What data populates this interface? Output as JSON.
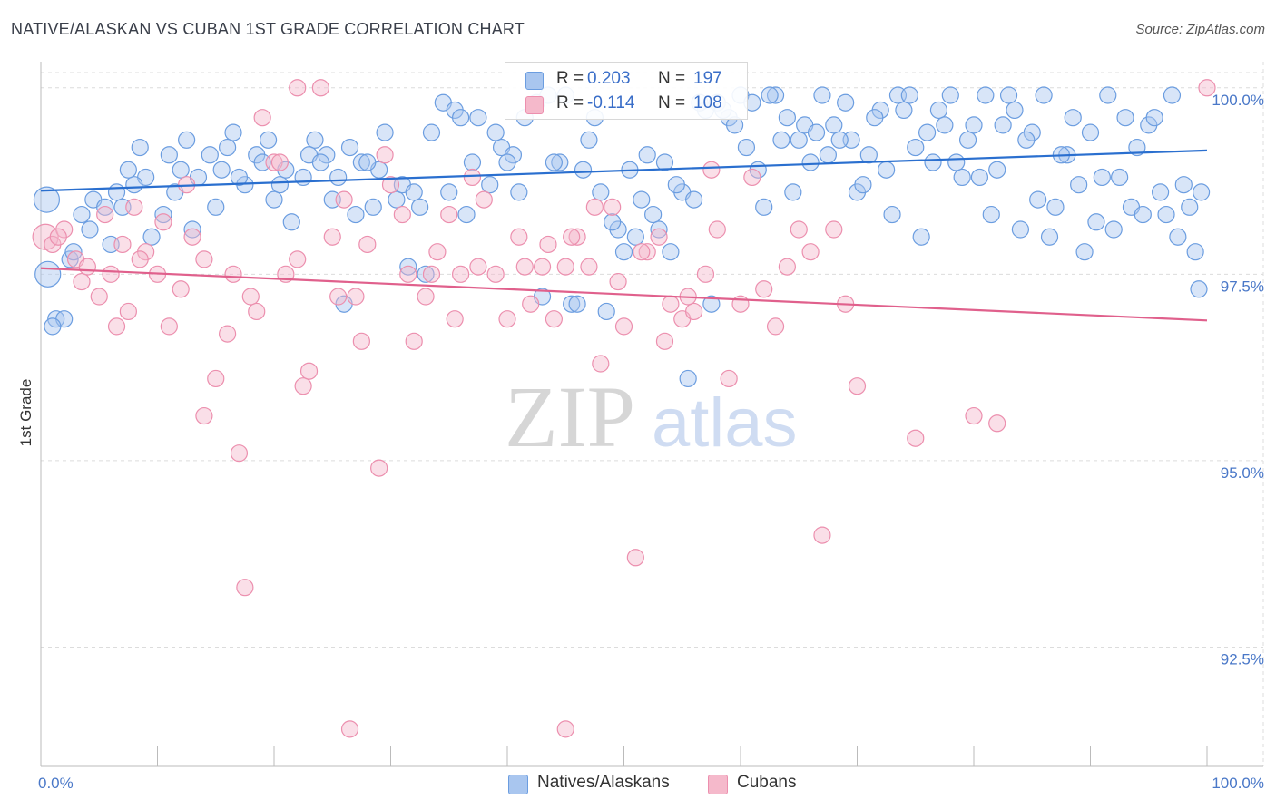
{
  "title": "NATIVE/ALASKAN VS CUBAN 1ST GRADE CORRELATION CHART",
  "source": "Source: ZipAtlas.com",
  "watermark": {
    "zip": "ZIP",
    "atlas": "atlas"
  },
  "legend_top": [
    {
      "r_label": "R =",
      "r_value": "0.203",
      "n_label": "N =",
      "n_value": "197"
    },
    {
      "r_label": "R =",
      "r_value": "-0.114",
      "n_label": "N =",
      "n_value": "108"
    }
  ],
  "legend_bottom": [
    {
      "label": "Natives/Alaskans"
    },
    {
      "label": "Cubans"
    }
  ],
  "colors": {
    "natives_fill": "#a9c6ef",
    "natives_stroke": "#6b9de0",
    "natives_line": "#2a6fcf",
    "cubans_fill": "#f5b9cb",
    "cubans_stroke": "#ec8fae",
    "cubans_line": "#e0608c",
    "tick_text": "#4a78c8",
    "grid": "#dcdcdc"
  },
  "chart_data": {
    "type": "scatter",
    "xlabel": "",
    "ylabel": "1st Grade",
    "xlim": [
      0,
      100
    ],
    "ylim": [
      90.9,
      100.35
    ],
    "x_tick_labels": [
      "0.0%",
      "100.0%"
    ],
    "y_ticks": [
      92.5,
      95.0,
      97.5,
      100.0
    ],
    "y_tick_labels": [
      "92.5%",
      "95.0%",
      "97.5%",
      "100.0%"
    ],
    "grid": true,
    "legend_position": "top-center",
    "series": [
      {
        "name": "Natives/Alaskans",
        "r": 0.203,
        "n": 197,
        "trend": [
          [
            0,
            98.62
          ],
          [
            100,
            99.16
          ]
        ],
        "points": [
          [
            0.5,
            98.5
          ],
          [
            0.6,
            97.5
          ],
          [
            1.3,
            96.9
          ],
          [
            2,
            96.9
          ],
          [
            2.5,
            97.7
          ],
          [
            3.5,
            98.3
          ],
          [
            4.5,
            98.5
          ],
          [
            5.5,
            98.4
          ],
          [
            6.5,
            98.6
          ],
          [
            7,
            98.4
          ],
          [
            8.5,
            99.2
          ],
          [
            9,
            98.8
          ],
          [
            10.5,
            98.3
          ],
          [
            11,
            99.1
          ],
          [
            12.5,
            99.3
          ],
          [
            13.5,
            98.8
          ],
          [
            14.5,
            99.1
          ],
          [
            15.5,
            98.9
          ],
          [
            16.5,
            99.4
          ],
          [
            17.5,
            98.7
          ],
          [
            18.5,
            99.1
          ],
          [
            19.5,
            99.3
          ],
          [
            20.5,
            98.7
          ],
          [
            21.5,
            98.2
          ],
          [
            22.5,
            98.8
          ],
          [
            23.5,
            99.3
          ],
          [
            24.5,
            99.1
          ],
          [
            25.5,
            98.8
          ],
          [
            26.5,
            99.2
          ],
          [
            27.5,
            99.0
          ],
          [
            28.5,
            98.4
          ],
          [
            29.5,
            99.4
          ],
          [
            30.5,
            98.5
          ],
          [
            31.5,
            97.6
          ],
          [
            32.5,
            98.4
          ],
          [
            33.5,
            99.4
          ],
          [
            34.5,
            99.8
          ],
          [
            35.5,
            99.7
          ],
          [
            36.5,
            98.3
          ],
          [
            37.5,
            99.6
          ],
          [
            38.5,
            98.7
          ],
          [
            39.5,
            99.2
          ],
          [
            40.5,
            99.1
          ],
          [
            41.5,
            99.6
          ],
          [
            42.5,
            99.8
          ],
          [
            43.5,
            99.9
          ],
          [
            44.5,
            99.0
          ],
          [
            45.5,
            97.1
          ],
          [
            46.5,
            98.9
          ],
          [
            47.5,
            99.6
          ],
          [
            48.5,
            97.0
          ],
          [
            49.5,
            98.1
          ],
          [
            50.5,
            98.9
          ],
          [
            51.5,
            98.5
          ],
          [
            52.5,
            98.3
          ],
          [
            53,
            98.1
          ],
          [
            54,
            97.8
          ],
          [
            55,
            98.6
          ],
          [
            56,
            98.5
          ],
          [
            57,
            99.7
          ],
          [
            58,
            99.8
          ],
          [
            59,
            99.6
          ],
          [
            60,
            99.9
          ],
          [
            61,
            99.8
          ],
          [
            62,
            98.4
          ],
          [
            63,
            99.9
          ],
          [
            64.5,
            98.6
          ],
          [
            65,
            99.3
          ],
          [
            66,
            99.0
          ],
          [
            67,
            99.9
          ],
          [
            68,
            99.5
          ],
          [
            69,
            99.8
          ],
          [
            70,
            98.6
          ],
          [
            71,
            99.1
          ],
          [
            72,
            99.7
          ],
          [
            73,
            98.3
          ],
          [
            74,
            99.7
          ],
          [
            75,
            99.2
          ],
          [
            76,
            99.4
          ],
          [
            77,
            99.7
          ],
          [
            78,
            99.9
          ],
          [
            79,
            98.8
          ],
          [
            80,
            99.5
          ],
          [
            81,
            99.9
          ],
          [
            82,
            98.9
          ],
          [
            83,
            99.9
          ],
          [
            84,
            98.1
          ],
          [
            85,
            99.4
          ],
          [
            86,
            99.9
          ],
          [
            87,
            98.4
          ],
          [
            88,
            99.1
          ],
          [
            89,
            98.7
          ],
          [
            90,
            99.4
          ],
          [
            91,
            98.8
          ],
          [
            92,
            98.1
          ],
          [
            93,
            99.6
          ],
          [
            94,
            99.2
          ],
          [
            95,
            99.5
          ],
          [
            96,
            98.6
          ],
          [
            97,
            99.9
          ],
          [
            98,
            98.7
          ],
          [
            99,
            97.8
          ],
          [
            99.3,
            97.3
          ],
          [
            1,
            96.8
          ],
          [
            2.8,
            97.8
          ],
          [
            4.2,
            98.1
          ],
          [
            6,
            97.9
          ],
          [
            8,
            98.7
          ],
          [
            9.5,
            98.0
          ],
          [
            11.5,
            98.6
          ],
          [
            13,
            98.1
          ],
          [
            15,
            98.4
          ],
          [
            17,
            98.8
          ],
          [
            19,
            99.0
          ],
          [
            21,
            98.9
          ],
          [
            23,
            99.1
          ],
          [
            25,
            98.5
          ],
          [
            27,
            98.3
          ],
          [
            29,
            98.9
          ],
          [
            31,
            98.7
          ],
          [
            33,
            97.5
          ],
          [
            35,
            98.6
          ],
          [
            37,
            99.0
          ],
          [
            39,
            99.4
          ],
          [
            41,
            98.6
          ],
          [
            43,
            97.2
          ],
          [
            45,
            99.9
          ],
          [
            47,
            99.3
          ],
          [
            49,
            98.2
          ],
          [
            51,
            98.0
          ],
          [
            53.5,
            99.0
          ],
          [
            55.5,
            96.1
          ],
          [
            57.5,
            97.1
          ],
          [
            59.5,
            99.5
          ],
          [
            61.5,
            98.9
          ],
          [
            63.5,
            99.3
          ],
          [
            65.5,
            99.5
          ],
          [
            67.5,
            99.1
          ],
          [
            69.5,
            99.3
          ],
          [
            71.5,
            99.6
          ],
          [
            73.5,
            99.9
          ],
          [
            75.5,
            98.0
          ],
          [
            77.5,
            99.5
          ],
          [
            79.5,
            99.3
          ],
          [
            81.5,
            98.3
          ],
          [
            83.5,
            99.7
          ],
          [
            85.5,
            98.5
          ],
          [
            87.5,
            99.1
          ],
          [
            89.5,
            97.8
          ],
          [
            91.5,
            99.9
          ],
          [
            93.5,
            98.4
          ],
          [
            95.5,
            99.6
          ],
          [
            97.5,
            98.0
          ],
          [
            98.5,
            98.4
          ],
          [
            7.5,
            98.9
          ],
          [
            12,
            98.9
          ],
          [
            16,
            99.2
          ],
          [
            20,
            98.5
          ],
          [
            24,
            99.0
          ],
          [
            28,
            99.0
          ],
          [
            32,
            98.6
          ],
          [
            36,
            99.6
          ],
          [
            40,
            99.0
          ],
          [
            44,
            99.0
          ],
          [
            48,
            98.6
          ],
          [
            52,
            99.1
          ],
          [
            56.5,
            99.8
          ],
          [
            60.5,
            99.2
          ],
          [
            64,
            99.6
          ],
          [
            68.5,
            99.3
          ],
          [
            72.5,
            98.9
          ],
          [
            76.5,
            99.0
          ],
          [
            80.5,
            98.8
          ],
          [
            84.5,
            99.3
          ],
          [
            88.5,
            99.6
          ],
          [
            92.5,
            98.8
          ],
          [
            96.5,
            98.3
          ],
          [
            58.5,
            99.7
          ],
          [
            62.5,
            99.9
          ],
          [
            66.5,
            99.4
          ],
          [
            70.5,
            98.7
          ],
          [
            74.5,
            99.9
          ],
          [
            78.5,
            99.0
          ],
          [
            82.5,
            99.5
          ],
          [
            86.5,
            98.0
          ],
          [
            90.5,
            98.2
          ],
          [
            94.5,
            98.3
          ],
          [
            99.5,
            98.6
          ],
          [
            26,
            97.1
          ],
          [
            46,
            97.1
          ],
          [
            50,
            97.8
          ],
          [
            54.5,
            98.7
          ]
        ]
      },
      {
        "name": "Cubans",
        "r": -0.114,
        "n": 108,
        "trend": [
          [
            0,
            97.58
          ],
          [
            100,
            96.88
          ]
        ],
        "points": [
          [
            0.4,
            98.0
          ],
          [
            1,
            97.9
          ],
          [
            2,
            98.1
          ],
          [
            3,
            97.7
          ],
          [
            4,
            97.6
          ],
          [
            5,
            97.2
          ],
          [
            6,
            97.5
          ],
          [
            7,
            97.9
          ],
          [
            8,
            98.4
          ],
          [
            9,
            97.8
          ],
          [
            10,
            97.5
          ],
          [
            11,
            96.8
          ],
          [
            12,
            97.3
          ],
          [
            13,
            98.0
          ],
          [
            14,
            97.7
          ],
          [
            15,
            96.1
          ],
          [
            16,
            96.7
          ],
          [
            17,
            95.1
          ],
          [
            18,
            97.2
          ],
          [
            19,
            99.6
          ],
          [
            20,
            99.0
          ],
          [
            21,
            97.5
          ],
          [
            22,
            97.7
          ],
          [
            23,
            96.2
          ],
          [
            24,
            100.0
          ],
          [
            25,
            98.0
          ],
          [
            26,
            98.5
          ],
          [
            27,
            97.2
          ],
          [
            28,
            97.9
          ],
          [
            29,
            94.9
          ],
          [
            30,
            98.7
          ],
          [
            31,
            98.3
          ],
          [
            32,
            96.6
          ],
          [
            33,
            97.2
          ],
          [
            34,
            97.8
          ],
          [
            35,
            98.3
          ],
          [
            36,
            97.5
          ],
          [
            37,
            98.8
          ],
          [
            38,
            98.5
          ],
          [
            39,
            97.5
          ],
          [
            40,
            96.9
          ],
          [
            41,
            98.0
          ],
          [
            42,
            97.1
          ],
          [
            43,
            97.6
          ],
          [
            44,
            96.9
          ],
          [
            45,
            97.6
          ],
          [
            46,
            98.0
          ],
          [
            47,
            97.6
          ],
          [
            48,
            96.3
          ],
          [
            49,
            98.4
          ],
          [
            50,
            96.8
          ],
          [
            51,
            93.7
          ],
          [
            52,
            97.8
          ],
          [
            53,
            98.0
          ],
          [
            54,
            97.1
          ],
          [
            55,
            96.9
          ],
          [
            56,
            97.0
          ],
          [
            57,
            97.5
          ],
          [
            58,
            98.1
          ],
          [
            59,
            96.1
          ],
          [
            60,
            97.1
          ],
          [
            61,
            98.8
          ],
          [
            62,
            97.3
          ],
          [
            63,
            96.8
          ],
          [
            64,
            97.6
          ],
          [
            65,
            98.1
          ],
          [
            66,
            97.8
          ],
          [
            67,
            94.0
          ],
          [
            68,
            98.1
          ],
          [
            69,
            97.1
          ],
          [
            70,
            96.0
          ],
          [
            5.5,
            98.3
          ],
          [
            7.5,
            97.0
          ],
          [
            10.5,
            98.2
          ],
          [
            14,
            95.6
          ],
          [
            16.5,
            97.5
          ],
          [
            18.5,
            97.0
          ],
          [
            20.5,
            99.0
          ],
          [
            22.5,
            96.0
          ],
          [
            25.5,
            97.2
          ],
          [
            27.5,
            96.6
          ],
          [
            29.5,
            99.1
          ],
          [
            31.5,
            97.5
          ],
          [
            33.5,
            97.5
          ],
          [
            35.5,
            96.9
          ],
          [
            37.5,
            97.6
          ],
          [
            41.5,
            97.6
          ],
          [
            43.5,
            97.9
          ],
          [
            45.5,
            98.0
          ],
          [
            47.5,
            98.4
          ],
          [
            49.5,
            97.4
          ],
          [
            51.5,
            97.8
          ],
          [
            53.5,
            96.6
          ],
          [
            55.5,
            97.2
          ],
          [
            57.5,
            98.9
          ],
          [
            75,
            95.3
          ],
          [
            80,
            95.6
          ],
          [
            82,
            95.5
          ],
          [
            1.5,
            98.0
          ],
          [
            3.5,
            97.4
          ],
          [
            6.5,
            96.8
          ],
          [
            8.5,
            97.7
          ],
          [
            12.5,
            98.7
          ],
          [
            17.5,
            93.3
          ],
          [
            26.5,
            91.4
          ],
          [
            45,
            91.4
          ],
          [
            100,
            100.0
          ],
          [
            22,
            100.0
          ]
        ]
      }
    ]
  }
}
